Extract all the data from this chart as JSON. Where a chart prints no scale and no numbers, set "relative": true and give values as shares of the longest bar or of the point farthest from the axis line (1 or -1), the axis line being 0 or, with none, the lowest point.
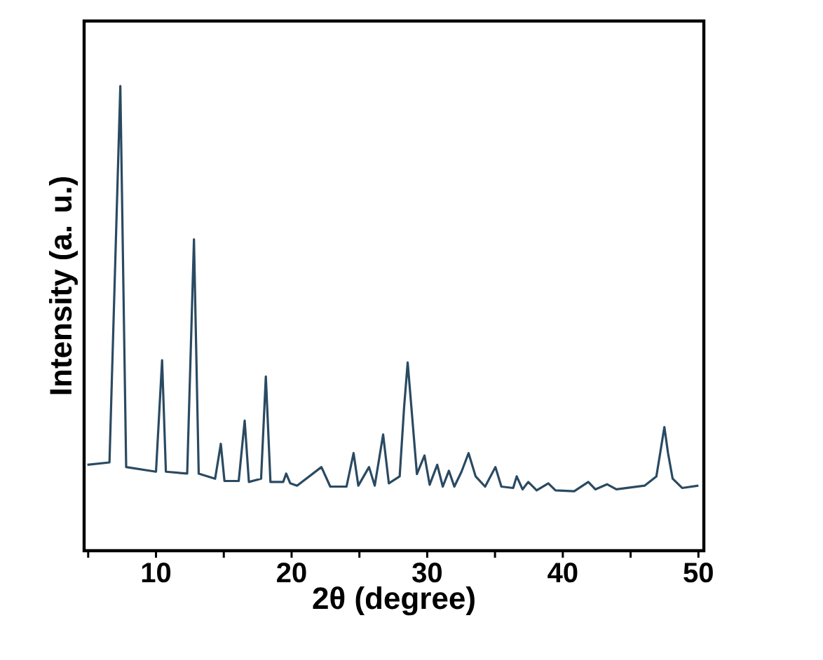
{
  "chart_data": {
    "type": "line",
    "relative": true,
    "xlabel": "2θ (degree)",
    "ylabel": "Intensity (a. u.)",
    "xlim": [
      4.7,
      50.4
    ],
    "xticks": [
      {
        "value": 5,
        "label": null
      },
      10,
      {
        "value": 15,
        "label": null
      },
      20,
      {
        "value": 25,
        "label": null
      },
      30,
      {
        "value": 35,
        "label": null
      },
      40,
      {
        "value": 45,
        "label": null
      },
      50
    ],
    "series": [
      {
        "color": "#2a4a62",
        "x": [
          4.94,
          6.57,
          7.37,
          7.8,
          10.0,
          10.45,
          10.73,
          12.3,
          12.8,
          13.15,
          14.36,
          14.78,
          15.05,
          16.1,
          16.54,
          16.85,
          17.75,
          18.1,
          18.44,
          19.38,
          19.6,
          19.9,
          20.4,
          22.2,
          22.85,
          24.05,
          24.57,
          24.92,
          25.71,
          26.13,
          26.75,
          27.17,
          27.97,
          28.3,
          28.56,
          28.83,
          29.24,
          29.8,
          30.18,
          30.74,
          31.15,
          31.6,
          32.0,
          32.53,
          33.05,
          33.57,
          34.27,
          35.03,
          35.47,
          36.34,
          36.6,
          37.03,
          37.45,
          38.07,
          38.93,
          39.46,
          40.84,
          41.88,
          42.4,
          43.26,
          43.95,
          46.03,
          46.9,
          47.18,
          47.49,
          47.76,
          48.1,
          48.8,
          50.0
        ],
        "values": [
          0.185,
          0.19,
          1.0,
          0.18,
          0.17,
          0.41,
          0.17,
          0.166,
          0.67,
          0.166,
          0.155,
          0.23,
          0.15,
          0.15,
          0.28,
          0.148,
          0.155,
          0.375,
          0.148,
          0.148,
          0.166,
          0.145,
          0.14,
          0.18,
          0.138,
          0.138,
          0.21,
          0.14,
          0.18,
          0.14,
          0.25,
          0.145,
          0.16,
          0.31,
          0.405,
          0.31,
          0.165,
          0.205,
          0.142,
          0.185,
          0.138,
          0.172,
          0.138,
          0.17,
          0.21,
          0.16,
          0.138,
          0.18,
          0.138,
          0.135,
          0.16,
          0.132,
          0.148,
          0.13,
          0.145,
          0.13,
          0.128,
          0.148,
          0.132,
          0.143,
          0.132,
          0.14,
          0.16,
          0.21,
          0.266,
          0.21,
          0.155,
          0.135,
          0.14
        ]
      }
    ]
  }
}
